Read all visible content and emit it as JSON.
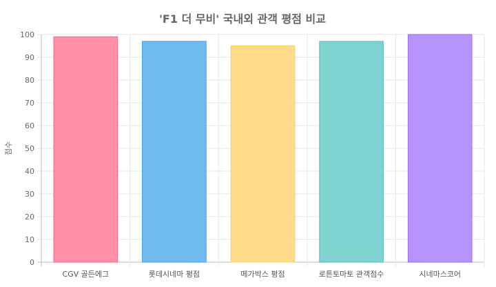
{
  "chart_data": {
    "type": "bar",
    "title": "'F1 더 무비' 국내외 관객 평점 비교",
    "xlabel": "",
    "ylabel": "점수",
    "ylim": [
      0,
      100
    ],
    "yticks": [
      0,
      10,
      20,
      30,
      40,
      50,
      60,
      70,
      80,
      90,
      100
    ],
    "categories": [
      "CGV 골든에그",
      "롯데시네마 평점",
      "메가박스 평점",
      "로튼토마토 관객점수",
      "시네마스코어"
    ],
    "values": [
      99,
      97,
      95,
      97,
      100
    ],
    "colors": [
      "#ff8fa6",
      "#71bbf0",
      "#ffdb8a",
      "#80d2d3",
      "#b794fd"
    ],
    "border_colors": [
      "#ff6384",
      "#36a2eb",
      "#ffce56",
      "#4bc0c0",
      "#9966ff"
    ],
    "grid": true,
    "legend": "none"
  }
}
